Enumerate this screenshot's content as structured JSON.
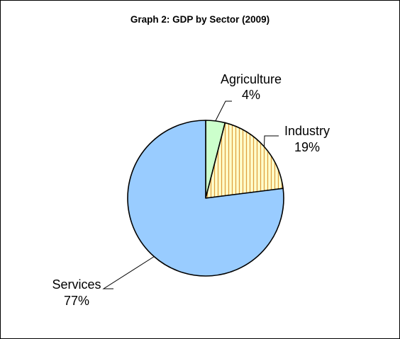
{
  "chart_data": {
    "type": "pie",
    "title": "Graph 2: GDP by Sector (2009)",
    "slices": [
      {
        "name": "Agriculture",
        "value": 4,
        "label": "4%",
        "color": "#ccffcc",
        "pattern": "solid"
      },
      {
        "name": "Industry",
        "value": 19,
        "label": "19%",
        "color": "#ffffcc",
        "pattern": "vertical-stripes",
        "stripe_color": "#e0a040"
      },
      {
        "name": "Services",
        "value": 77,
        "label": "77%",
        "color": "#99ccff",
        "pattern": "solid"
      }
    ],
    "start_angle": "12 o'clock",
    "direction": "clockwise",
    "legend": "none"
  }
}
